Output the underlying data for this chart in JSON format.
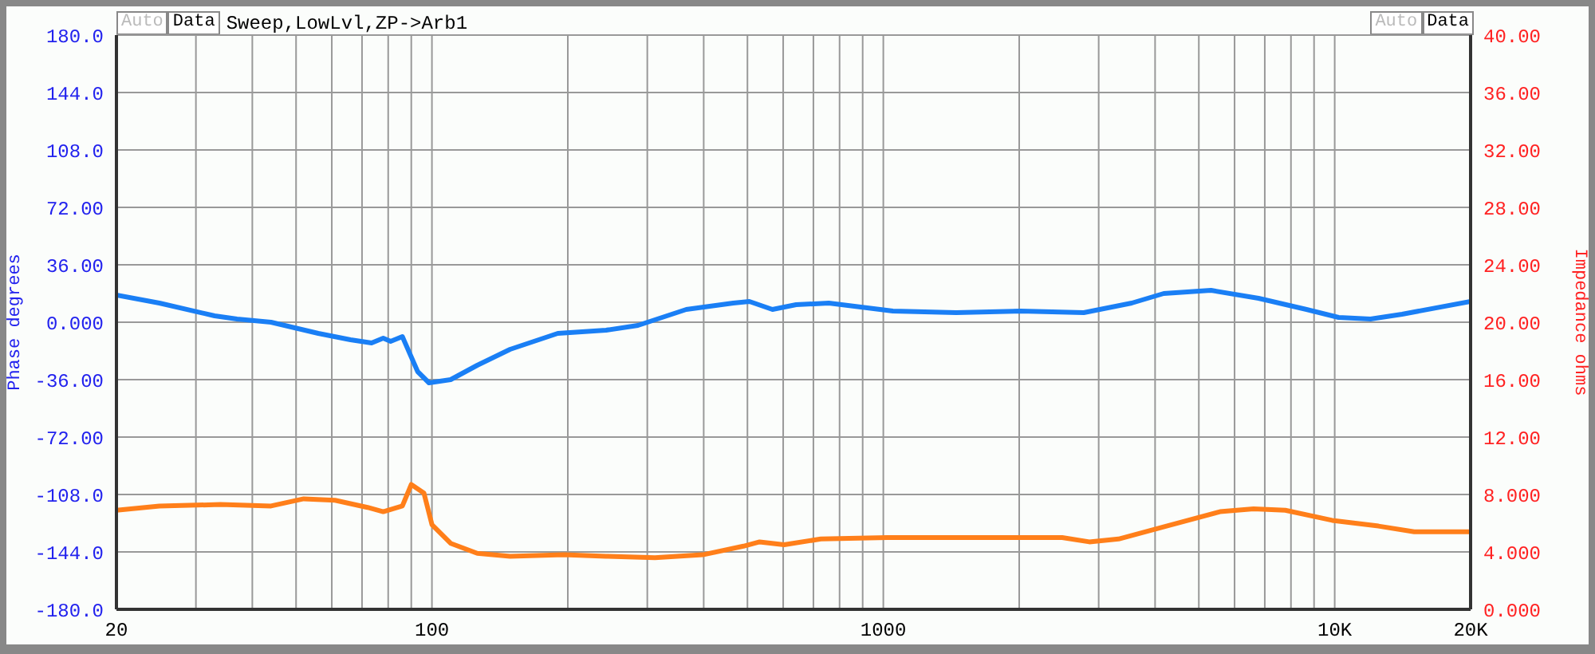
{
  "chart_data": {
    "type": "line",
    "title": "Sweep,LowLvl,ZP->Arb1",
    "ylabel": "Phase degrees",
    "y2label": "Impedance ohms",
    "annotations": [
      "Auto",
      "Data",
      "Auto",
      "Data"
    ],
    "log": "x",
    "grid": true,
    "legend": false,
    "marker": "none",
    "line_style": "solid",
    "xlim": [
      20,
      20000
    ],
    "xticks": [
      {
        "value": 20,
        "label": "20"
      },
      {
        "value": 30,
        "label": null
      },
      {
        "value": 40,
        "label": null
      },
      {
        "value": 50,
        "label": null
      },
      {
        "value": 60,
        "label": null
      },
      {
        "value": 70,
        "label": null
      },
      {
        "value": 80,
        "label": null
      },
      {
        "value": 90,
        "label": null
      },
      {
        "value": 100,
        "label": "100"
      },
      {
        "value": 200,
        "label": null
      },
      {
        "value": 300,
        "label": null
      },
      {
        "value": 400,
        "label": null
      },
      {
        "value": 500,
        "label": null
      },
      {
        "value": 600,
        "label": null
      },
      {
        "value": 700,
        "label": null
      },
      {
        "value": 800,
        "label": null
      },
      {
        "value": 900,
        "label": null
      },
      {
        "value": 1000,
        "label": "1000"
      },
      {
        "value": 2000,
        "label": null
      },
      {
        "value": 3000,
        "label": null
      },
      {
        "value": 4000,
        "label": null
      },
      {
        "value": 5000,
        "label": null
      },
      {
        "value": 6000,
        "label": null
      },
      {
        "value": 7000,
        "label": null
      },
      {
        "value": 8000,
        "label": null
      },
      {
        "value": 9000,
        "label": null
      },
      {
        "value": 10000,
        "label": "10K"
      },
      {
        "value": 20000,
        "label": "20K"
      }
    ],
    "ylim": [
      -180,
      180
    ],
    "yticks": [
      {
        "value": -180,
        "label": "-180.0"
      },
      {
        "value": -144,
        "label": "-144.0"
      },
      {
        "value": -108,
        "label": "-108.0"
      },
      {
        "value": -72,
        "label": "-72.00"
      },
      {
        "value": -36,
        "label": "-36.00"
      },
      {
        "value": 0,
        "label": "0.000"
      },
      {
        "value": 36,
        "label": "36.00"
      },
      {
        "value": 72,
        "label": "72.00"
      },
      {
        "value": 108,
        "label": "108.0"
      },
      {
        "value": 144,
        "label": "144.0"
      },
      {
        "value": 180,
        "label": "180.0"
      }
    ],
    "y2lim": [
      0,
      40
    ],
    "y2ticks": [
      {
        "value": 0,
        "label": "0.000"
      },
      {
        "value": 4,
        "label": "4.000"
      },
      {
        "value": 8,
        "label": "8.000"
      },
      {
        "value": 12,
        "label": "12.00"
      },
      {
        "value": 16,
        "label": "16.00"
      },
      {
        "value": 20,
        "label": "20.00"
      },
      {
        "value": 24,
        "label": "24.00"
      },
      {
        "value": 28,
        "label": "28.00"
      },
      {
        "value": 32,
        "label": "32.00"
      },
      {
        "value": 36,
        "label": "36.00"
      },
      {
        "value": 40,
        "label": "40.00"
      }
    ],
    "series": [
      {
        "color": "#1a7ff5",
        "x": [
          20,
          24.9,
          33,
          37,
          44,
          56,
          66,
          73.5,
          78,
          81,
          86,
          93,
          98.5,
          110,
          126,
          149,
          190,
          243,
          286,
          366,
          465,
          505,
          568,
          641,
          757,
          1050,
          1450,
          2010,
          2780,
          3550,
          4180,
          5320,
          6780,
          8660,
          10200,
          12000,
          14100,
          20000
        ],
        "values": [
          17,
          12,
          4,
          2,
          0,
          -7,
          -11,
          -13,
          -10,
          -12,
          -9,
          -31,
          -38,
          -36,
          -27,
          -17,
          -7,
          -5,
          -2,
          8,
          12,
          13,
          8,
          11,
          12,
          7,
          6,
          7,
          6,
          12,
          18,
          20,
          15,
          8,
          3,
          2,
          5,
          13
        ]
      },
      {
        "color": "#ff7f1a",
        "axis": "y2",
        "x": [
          20,
          24.9,
          34,
          44,
          52,
          61,
          72,
          78,
          86,
          90,
          96,
          100,
          110,
          126,
          149,
          196,
          243,
          312,
          398,
          490,
          532,
          603,
          727,
          1020,
          1590,
          2490,
          2860,
          3320,
          4240,
          5570,
          6610,
          7770,
          9870,
          12500,
          15000,
          20000
        ],
        "values": [
          6.9,
          7.2,
          7.3,
          7.2,
          7.7,
          7.6,
          7.1,
          6.8,
          7.2,
          8.7,
          8.1,
          5.9,
          4.6,
          3.9,
          3.7,
          3.8,
          3.7,
          3.6,
          3.8,
          4.4,
          4.7,
          4.5,
          4.9,
          5.0,
          5.0,
          5.0,
          4.7,
          4.9,
          5.8,
          6.8,
          7.0,
          6.9,
          6.2,
          5.8,
          5.4,
          5.4
        ]
      }
    ]
  }
}
